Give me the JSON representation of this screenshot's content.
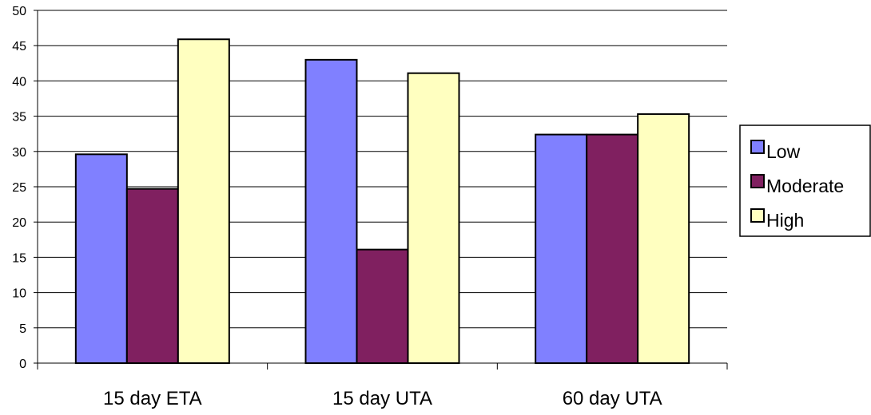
{
  "chart_data": {
    "type": "bar",
    "categories": [
      "15 day ETA",
      "15 day UTA",
      "60 day UTA"
    ],
    "series": [
      {
        "name": "Low",
        "values": [
          29.6,
          43.0,
          32.4
        ],
        "color": "#8080ff"
      },
      {
        "name": "Moderate",
        "values": [
          24.7,
          16.1,
          32.4
        ],
        "color": "#802060"
      },
      {
        "name": "High",
        "values": [
          45.9,
          41.1,
          35.3
        ],
        "color": "#ffffc0"
      }
    ],
    "ylim": [
      0,
      50
    ],
    "yticks": [
      0,
      5,
      10,
      15,
      20,
      25,
      30,
      35,
      40,
      45,
      50
    ],
    "grid": true,
    "legend": "right"
  }
}
